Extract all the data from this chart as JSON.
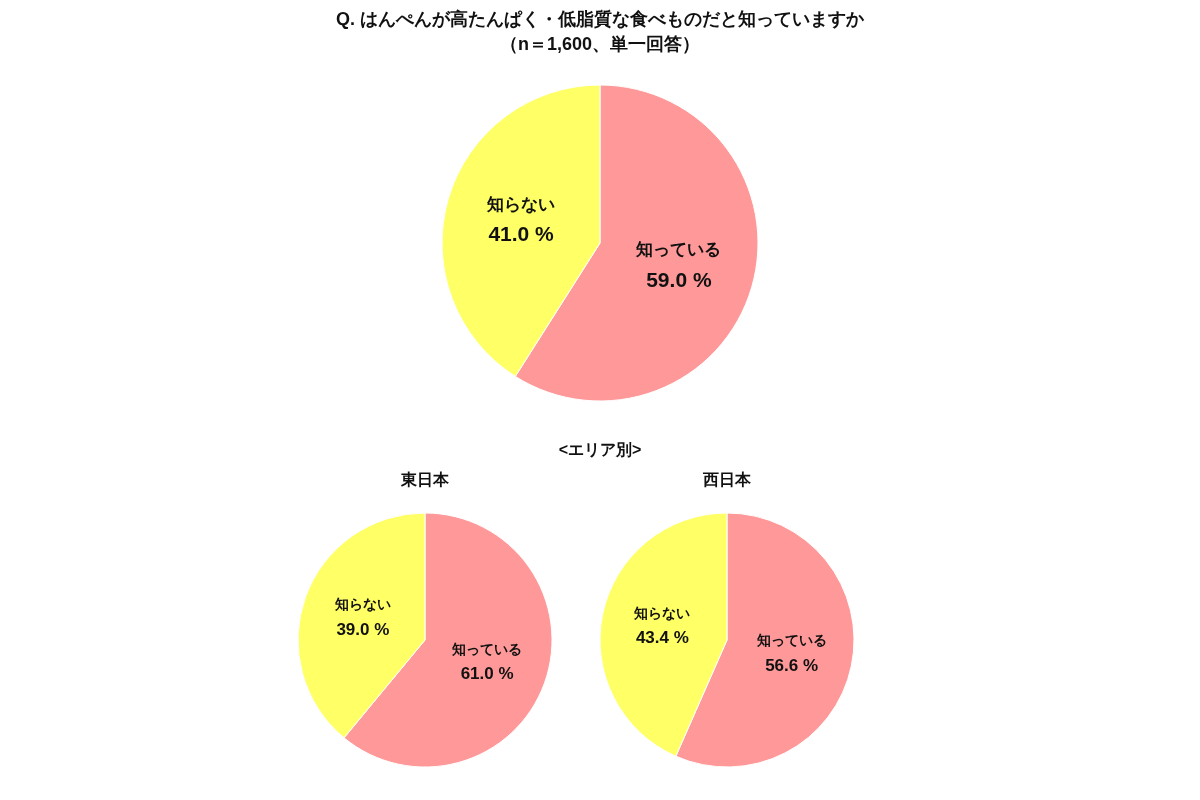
{
  "chart_data": [
    {
      "type": "pie",
      "title": "Q. はんぺんが高たんぱく・低脂質な食べものだと知っていますか",
      "subtitle": "（n＝1,600、単一回答）",
      "categories": [
        "知っている",
        "知らない"
      ],
      "values": [
        59.0,
        41.0
      ],
      "colors": [
        "#ff9999",
        "#ffff66"
      ],
      "value_labels": [
        "59.0 %",
        "41.0 %"
      ]
    },
    {
      "type": "pie",
      "annotations": [
        "<エリア別>"
      ],
      "title": "東日本",
      "categories": [
        "知っている",
        "知らない"
      ],
      "values": [
        61.0,
        39.0
      ],
      "colors": [
        "#ff9999",
        "#ffff66"
      ],
      "value_labels": [
        "61.0 %",
        "39.0 %"
      ]
    },
    {
      "type": "pie",
      "title": "西日本",
      "categories": [
        "知っている",
        "知らない"
      ],
      "values": [
        56.6,
        43.4
      ],
      "colors": [
        "#ff9999",
        "#ffff66"
      ],
      "value_labels": [
        "56.6 %",
        "43.4 %"
      ]
    }
  ]
}
